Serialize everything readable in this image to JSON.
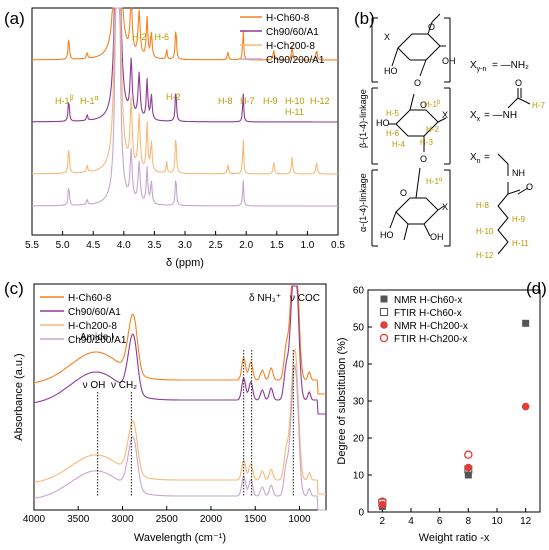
{
  "panels": {
    "a": "(a)",
    "b": "(b)",
    "c": "(c)",
    "d": "(d)"
  },
  "colors": {
    "h_ch60": "#f5821f",
    "ch90_60": "#8e3a96",
    "h_ch200": "#f7b978",
    "ch90_200": "#c6a6cd",
    "annot": "#b89a00",
    "nmr60": "#555555",
    "nmr200": "#e03c3c"
  },
  "chart_data": [
    {
      "type": "line",
      "panel": "a",
      "xlabel": "δ (ppm)",
      "ylabel": "",
      "xlim": [
        5.5,
        0.5
      ],
      "x_ticks": [
        "5.5",
        "5.0",
        "4.5",
        "4.0",
        "3.5",
        "3.0",
        "2.5",
        "2.0",
        "1.5",
        "1.0",
        "0.5"
      ],
      "legend": [
        "H-Ch60-8",
        "Ch90/60/A1",
        "H-Ch200-8",
        "Ch90/200/A1"
      ],
      "peaks_ppm": [
        {
          "ppm": 4.9,
          "label": "H-1β"
        },
        {
          "ppm": 4.6,
          "label": "H-1α"
        },
        {
          "ppm": 3.75,
          "label": "H-2 - H-6"
        },
        {
          "ppm": 3.15,
          "label": "H-2"
        },
        {
          "ppm": 2.05,
          "label": "H-7"
        },
        {
          "ppm": 2.3,
          "label": "H-8"
        },
        {
          "ppm": 1.55,
          "label": "H-9"
        },
        {
          "ppm": 1.25,
          "label": "H-10"
        },
        {
          "ppm": 1.25,
          "label": "H-11"
        },
        {
          "ppm": 0.85,
          "label": "H-12"
        }
      ]
    },
    {
      "type": "line",
      "panel": "c",
      "xlabel": "Wavelength (cm⁻¹)",
      "ylabel": "Absorbance (a.u.)",
      "xlim": [
        4000,
        700
      ],
      "x_ticks": [
        "4000",
        "3500",
        "3000",
        "2500",
        "2000",
        "1500",
        "1000"
      ],
      "legend": [
        "H-Ch60-8",
        "Ch90/60/A1",
        "H-Ch200-8",
        "Ch90/200/A1"
      ],
      "annotations": [
        {
          "x": 3280,
          "label": "ν OH"
        },
        {
          "x": 2900,
          "label": "ν CH₂"
        },
        {
          "x": 1630,
          "label": "Amide I"
        },
        {
          "x": 1540,
          "label": "δ NH₃⁺"
        },
        {
          "x": 1070,
          "label": "ν COC"
        }
      ]
    },
    {
      "type": "scatter",
      "panel": "d",
      "xlabel": "Weight ratio -x",
      "ylabel": "Degree of substitution (%)",
      "xlim": [
        1,
        13
      ],
      "ylim": [
        0,
        60
      ],
      "x_ticks": [
        "2",
        "4",
        "6",
        "8",
        "10",
        "12"
      ],
      "y_ticks": [
        "0",
        "10",
        "20",
        "30",
        "40",
        "50",
        "60"
      ],
      "series": [
        {
          "name": "NMR H-Ch60-x",
          "marker": "filled-square",
          "points": [
            [
              2,
              1.5
            ],
            [
              8,
              10
            ],
            [
              12,
              51
            ]
          ]
        },
        {
          "name": "FTIR H-Ch60-x",
          "marker": "open-square",
          "points": [
            [
              2,
              2.5
            ],
            [
              8,
              11.5
            ]
          ]
        },
        {
          "name": "NMR H-Ch200-x",
          "marker": "filled-circle",
          "points": [
            [
              2,
              2
            ],
            [
              8,
              12
            ],
            [
              12,
              28.5
            ]
          ]
        },
        {
          "name": "FTIR H-Ch200-x",
          "marker": "open-circle",
          "points": [
            [
              2,
              2.8
            ],
            [
              8,
              15.5
            ]
          ]
        }
      ]
    }
  ],
  "structure_b": {
    "linkage_beta": "β-(1-4)-linkage",
    "linkage_alpha": "α-(1-4)-linkage",
    "xyn": "X",
    "xyn_sub": "y-n",
    "xyn_eq": "= —NH₂",
    "xx": "X",
    "xx_sub": "x",
    "xx_eq": "= —NH",
    "xn": "X",
    "xn_sub": "n",
    "xn_eq": "=",
    "h7": "H-7",
    "chain_labels": [
      "H-8",
      "H-9",
      "H-10",
      "H-11",
      "H-12"
    ],
    "ring_labels": [
      "H-1β",
      "H-5",
      "H-2",
      "H-6",
      "H-3",
      "H-4",
      "H-1α"
    ],
    "atom_o": "O",
    "atom_x": "X",
    "atom_ho": "HO",
    "atom_oh": "OH",
    "atom_nh": "NH",
    "atom_h": "H",
    "atom_n": "N"
  }
}
